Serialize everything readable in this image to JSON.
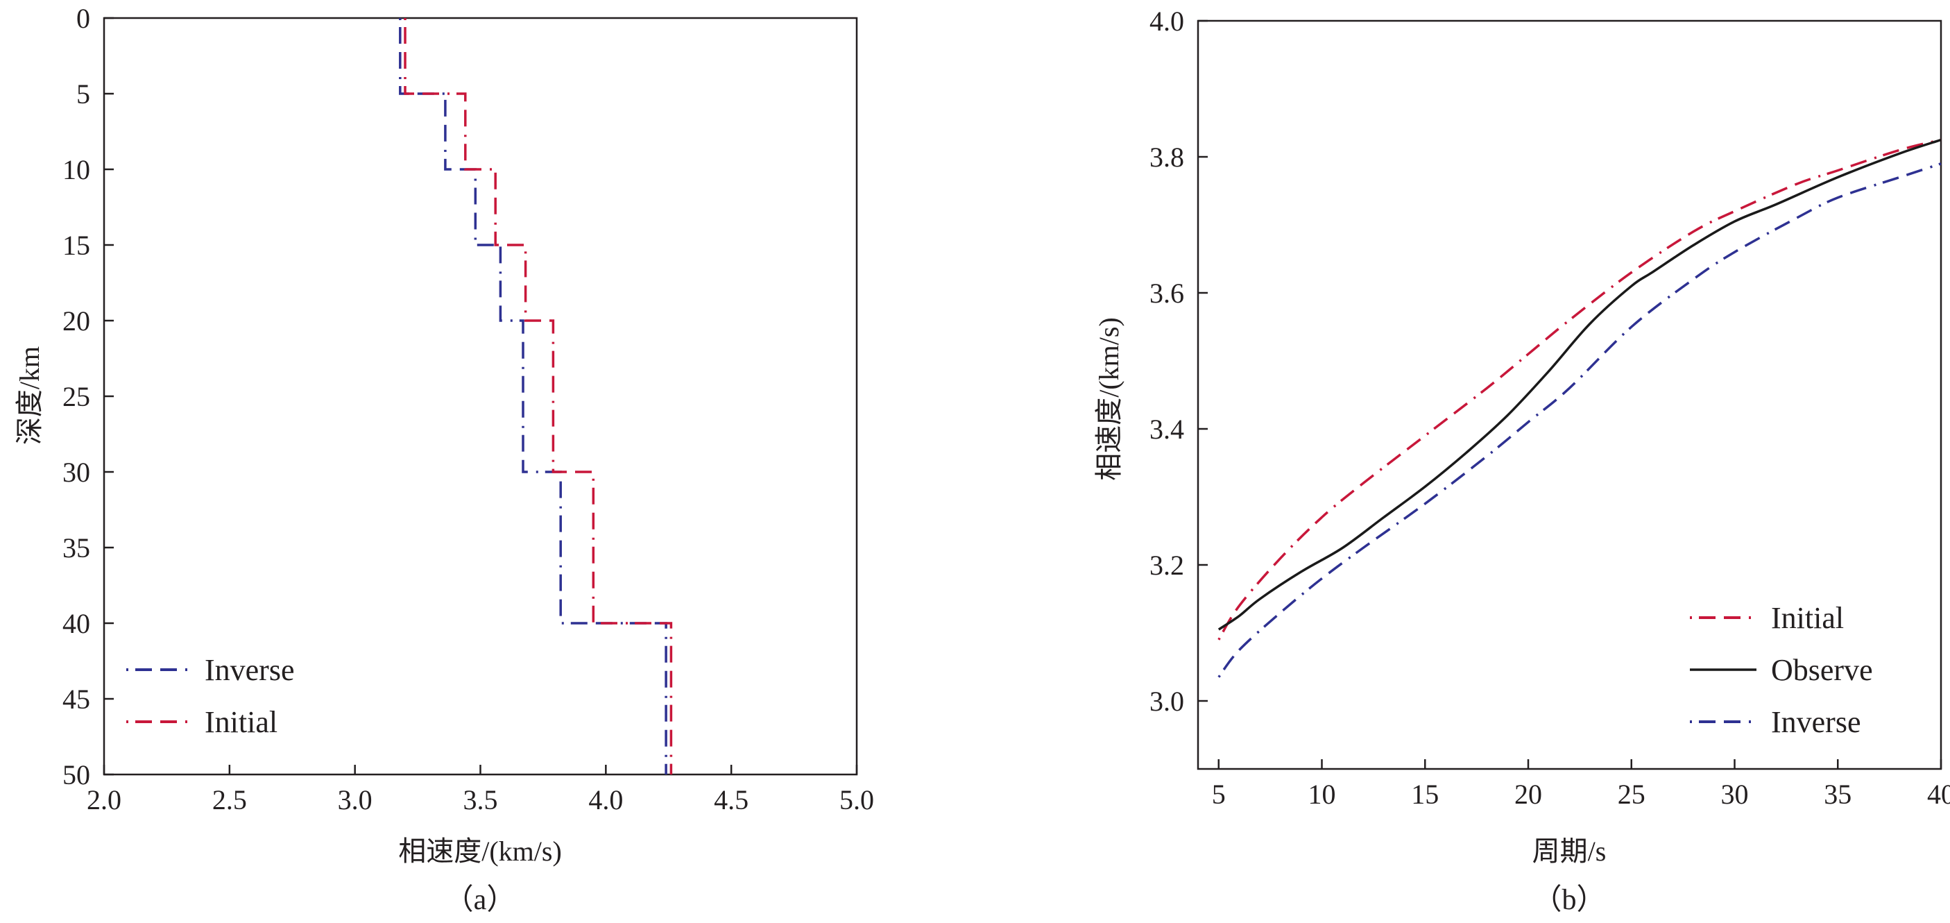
{
  "colors": {
    "initial": "#c8173a",
    "inverse": "#2e3192",
    "observe": "#1a1a1a",
    "axis": "#231f20"
  },
  "chart_data": [
    {
      "id": "a",
      "type": "line",
      "caption": "（a）",
      "xlabel": "相速度/(km/s)",
      "ylabel": "深度/km",
      "xlim": [
        2.0,
        5.0
      ],
      "ylim": [
        50,
        0
      ],
      "x_ticks": [
        2.0,
        2.5,
        3.0,
        3.5,
        4.0,
        4.5,
        5.0
      ],
      "x_tick_labels": [
        "2.0",
        "2.5",
        "3.0",
        "3.5",
        "4.0",
        "4.5",
        "5.0"
      ],
      "y_ticks": [
        0,
        5,
        10,
        15,
        20,
        25,
        30,
        35,
        40,
        45,
        50
      ],
      "y_tick_labels": [
        "0",
        "5",
        "10",
        "15",
        "20",
        "25",
        "30",
        "35",
        "40",
        "45",
        "50"
      ],
      "legend_position": "bottom-left",
      "legend": [
        "Inverse",
        "Initial"
      ],
      "series": [
        {
          "name": "Inverse",
          "style": "dashed",
          "color_key": "inverse",
          "depths": [
            0,
            5,
            10,
            15,
            20,
            30,
            40,
            50
          ],
          "velocities": [
            3.18,
            3.36,
            3.48,
            3.58,
            3.67,
            3.82,
            4.24
          ]
        },
        {
          "name": "Initial",
          "style": "dashed",
          "color_key": "initial",
          "depths": [
            0,
            5,
            10,
            15,
            20,
            30,
            40,
            50
          ],
          "velocities": [
            3.2,
            3.44,
            3.56,
            3.68,
            3.79,
            3.95,
            4.26
          ]
        }
      ]
    },
    {
      "id": "b",
      "type": "line",
      "caption": "（b）",
      "xlabel": "周期/s",
      "ylabel": "相速度/(km/s)",
      "xlim": [
        4,
        40
      ],
      "ylim": [
        2.9,
        4.0
      ],
      "x_ticks": [
        5,
        10,
        15,
        20,
        25,
        30,
        35,
        40
      ],
      "x_tick_labels": [
        "5",
        "10",
        "15",
        "20",
        "25",
        "30",
        "35",
        "40"
      ],
      "y_ticks": [
        3.0,
        3.2,
        3.4,
        3.6,
        3.8,
        4.0
      ],
      "y_tick_labels": [
        "3.0",
        "3.2",
        "3.4",
        "3.6",
        "3.8",
        "4.0"
      ],
      "legend_position": "bottom-right",
      "legend": [
        "Initial",
        "Observe",
        "Inverse"
      ],
      "series": [
        {
          "name": "Initial",
          "style": "dashed",
          "color_key": "initial",
          "x": [
            5,
            6,
            8,
            10,
            12,
            15,
            18,
            20,
            22,
            25,
            28,
            30,
            33,
            35,
            38,
            40
          ],
          "y": [
            3.09,
            3.14,
            3.21,
            3.27,
            3.32,
            3.39,
            3.46,
            3.51,
            3.56,
            3.63,
            3.69,
            3.72,
            3.76,
            3.78,
            3.81,
            3.825
          ]
        },
        {
          "name": "Observe",
          "style": "solid",
          "color_key": "observe",
          "x": [
            5,
            6,
            7,
            9,
            11,
            13,
            15,
            17,
            19,
            21,
            23,
            25,
            26,
            28,
            30,
            32,
            35,
            38,
            40
          ],
          "y": [
            3.105,
            3.125,
            3.15,
            3.19,
            3.225,
            3.27,
            3.315,
            3.365,
            3.42,
            3.485,
            3.555,
            3.61,
            3.63,
            3.67,
            3.705,
            3.73,
            3.77,
            3.805,
            3.825
          ]
        },
        {
          "name": "Inverse",
          "style": "dashed",
          "color_key": "inverse",
          "x": [
            5,
            6,
            8,
            10,
            12,
            15,
            18,
            20,
            22,
            25,
            28,
            30,
            33,
            35,
            38,
            40
          ],
          "y": [
            3.035,
            3.075,
            3.13,
            3.18,
            3.225,
            3.29,
            3.36,
            3.41,
            3.46,
            3.55,
            3.62,
            3.66,
            3.71,
            3.74,
            3.77,
            3.79
          ]
        }
      ]
    }
  ]
}
